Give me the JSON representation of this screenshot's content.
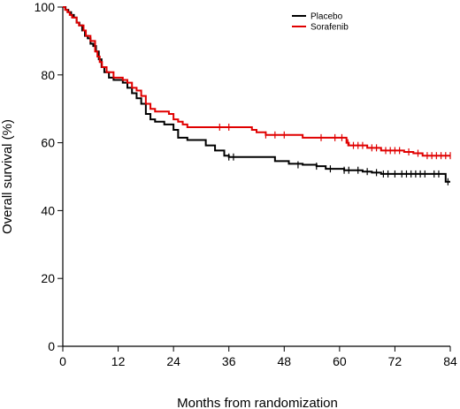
{
  "chart_data": {
    "type": "line",
    "subtype": "kaplan-meier",
    "xlabel": "Months from randomization",
    "ylabel": "Overall survival (%)",
    "xlim": [
      0,
      84
    ],
    "ylim": [
      0,
      100
    ],
    "xticks": [
      0,
      12,
      24,
      36,
      48,
      60,
      72,
      84
    ],
    "yticks": [
      0,
      20,
      40,
      60,
      80,
      100
    ],
    "grid": false,
    "legend": {
      "position": "top-right"
    },
    "series": [
      {
        "name": "Placebo",
        "color": "#000000",
        "steps": [
          [
            0,
            100
          ],
          [
            0.6,
            99.2
          ],
          [
            1.2,
            98.5
          ],
          [
            1.8,
            97.7
          ],
          [
            2.4,
            96.9
          ],
          [
            3,
            95.4
          ],
          [
            3.6,
            94.6
          ],
          [
            4.2,
            93.1
          ],
          [
            4.8,
            91.5
          ],
          [
            5.4,
            90.8
          ],
          [
            6,
            89.2
          ],
          [
            6.6,
            88.5
          ],
          [
            7.2,
            86.9
          ],
          [
            7.8,
            84.6
          ],
          [
            8.4,
            82.3
          ],
          [
            9,
            80.8
          ],
          [
            10,
            79.2
          ],
          [
            11,
            78.5
          ],
          [
            12.5,
            78.5
          ],
          [
            13,
            77.7
          ],
          [
            14,
            76.2
          ],
          [
            15,
            74.6
          ],
          [
            16,
            73.1
          ],
          [
            17,
            71.5
          ],
          [
            18,
            68.5
          ],
          [
            19,
            66.9
          ],
          [
            20,
            66.2
          ],
          [
            22,
            65.4
          ],
          [
            24,
            63.8
          ],
          [
            25,
            61.5
          ],
          [
            27,
            60.8
          ],
          [
            29,
            60.8
          ],
          [
            31,
            59.2
          ],
          [
            33,
            57.7
          ],
          [
            35,
            56.2
          ],
          [
            36,
            55.8
          ],
          [
            44,
            55.8
          ],
          [
            46,
            54.6
          ],
          [
            49,
            53.8
          ],
          [
            52,
            53.5
          ],
          [
            55,
            53.1
          ],
          [
            57,
            52.3
          ],
          [
            59,
            52.3
          ],
          [
            61,
            51.9
          ],
          [
            65,
            51.5
          ],
          [
            67,
            51.2
          ],
          [
            69,
            50.8
          ],
          [
            82,
            50.8
          ],
          [
            83,
            48.5
          ],
          [
            84,
            48.5
          ]
        ],
        "censored": [
          [
            36,
            55.8
          ],
          [
            37,
            55.8
          ],
          [
            51,
            53.5
          ],
          [
            55,
            53.1
          ],
          [
            58,
            52.3
          ],
          [
            61,
            51.9
          ],
          [
            62,
            51.9
          ],
          [
            64,
            51.9
          ],
          [
            66,
            51.5
          ],
          [
            68,
            51.2
          ],
          [
            69.5,
            50.8
          ],
          [
            70.5,
            50.8
          ],
          [
            72,
            50.8
          ],
          [
            73.5,
            50.8
          ],
          [
            74.5,
            50.8
          ],
          [
            75.5,
            50.8
          ],
          [
            76.5,
            50.8
          ],
          [
            77.5,
            50.8
          ],
          [
            78.5,
            50.8
          ],
          [
            80.5,
            50.8
          ],
          [
            81.5,
            50.8
          ],
          [
            83.5,
            48.5
          ]
        ]
      },
      {
        "name": "Sorafenib",
        "color": "#e00000",
        "steps": [
          [
            0,
            100
          ],
          [
            0.5,
            99.2
          ],
          [
            1,
            98.5
          ],
          [
            1.5,
            97.7
          ],
          [
            2,
            96.9
          ],
          [
            3,
            95.4
          ],
          [
            3.5,
            94.6
          ],
          [
            4.5,
            93.1
          ],
          [
            5,
            91.5
          ],
          [
            6,
            90
          ],
          [
            7,
            86.9
          ],
          [
            7.5,
            85.4
          ],
          [
            8,
            83.8
          ],
          [
            8.5,
            82.3
          ],
          [
            9.5,
            80.8
          ],
          [
            11,
            79.2
          ],
          [
            12,
            79.2
          ],
          [
            13,
            78.5
          ],
          [
            14,
            77.7
          ],
          [
            15,
            76.2
          ],
          [
            16,
            75.4
          ],
          [
            17,
            73.8
          ],
          [
            18,
            71.5
          ],
          [
            19,
            70
          ],
          [
            20,
            69.2
          ],
          [
            23,
            68.5
          ],
          [
            24,
            66.9
          ],
          [
            25,
            66.2
          ],
          [
            26,
            65.4
          ],
          [
            27,
            64.6
          ],
          [
            40,
            64.6
          ],
          [
            41,
            63.8
          ],
          [
            42,
            63.1
          ],
          [
            44,
            62.3
          ],
          [
            52,
            61.5
          ],
          [
            61,
            61.5
          ],
          [
            61.5,
            60
          ],
          [
            62,
            59.2
          ],
          [
            66,
            58.5
          ],
          [
            69,
            57.7
          ],
          [
            74,
            57.3
          ],
          [
            76,
            56.9
          ],
          [
            78,
            56.2
          ],
          [
            84,
            56.2
          ]
        ],
        "censored": [
          [
            34,
            64.6
          ],
          [
            36,
            64.6
          ],
          [
            44,
            62.3
          ],
          [
            46,
            62.3
          ],
          [
            48,
            62.3
          ],
          [
            56,
            61.5
          ],
          [
            59,
            61.5
          ],
          [
            60.5,
            61.5
          ],
          [
            61.8,
            60
          ],
          [
            63,
            59.2
          ],
          [
            64,
            59.2
          ],
          [
            65,
            59.2
          ],
          [
            67,
            58.5
          ],
          [
            68,
            58.5
          ],
          [
            70,
            57.7
          ],
          [
            71,
            57.7
          ],
          [
            72,
            57.7
          ],
          [
            73,
            57.7
          ],
          [
            75,
            57.3
          ],
          [
            77,
            56.9
          ],
          [
            79,
            56.2
          ],
          [
            80,
            56.2
          ],
          [
            81,
            56.2
          ],
          [
            82,
            56.2
          ],
          [
            83,
            56.2
          ],
          [
            84,
            56.2
          ]
        ]
      }
    ]
  }
}
